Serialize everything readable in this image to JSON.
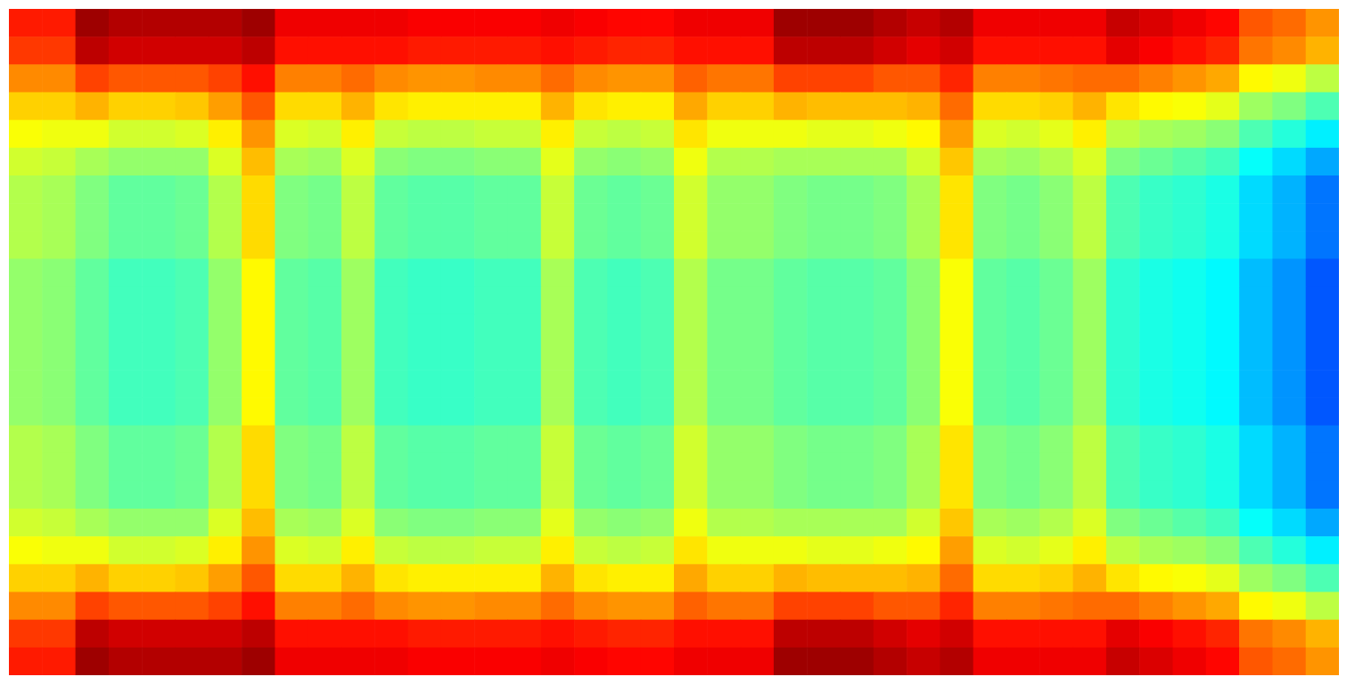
{
  "chart_data": {
    "type": "heatmap",
    "tick_labels": false,
    "zlim": [
      0,
      100
    ],
    "cells": [
      [
        85,
        85,
        97,
        95,
        95,
        95,
        95,
        97,
        89,
        89,
        89,
        89,
        88,
        88,
        88,
        88,
        89,
        88,
        87,
        87,
        89,
        89,
        89,
        97,
        97,
        97,
        95,
        93,
        95,
        89,
        89,
        89,
        89,
        93,
        91,
        89,
        87,
        79,
        77,
        73
      ],
      [
        82,
        82,
        94,
        92,
        92,
        92,
        92,
        94,
        86,
        86,
        86,
        86,
        85,
        85,
        85,
        85,
        86,
        85,
        84,
        84,
        86,
        86,
        86,
        94,
        94,
        94,
        92,
        90,
        92,
        86,
        86,
        86,
        86,
        90,
        88,
        86,
        84,
        76,
        74,
        70
      ],
      [
        74,
        74,
        81,
        79,
        79,
        79,
        81,
        86,
        75,
        75,
        77,
        74,
        73,
        73,
        74,
        74,
        77,
        74,
        73,
        73,
        78,
        76,
        76,
        81,
        81,
        81,
        79,
        79,
        84,
        75,
        75,
        76,
        77,
        77,
        75,
        73,
        71,
        63,
        61,
        56
      ],
      [
        67,
        67,
        70,
        67,
        67,
        68,
        72,
        79,
        66,
        66,
        70,
        65,
        64,
        64,
        64,
        64,
        70,
        65,
        64,
        64,
        71,
        67,
        67,
        70,
        69,
        69,
        69,
        70,
        77,
        66,
        66,
        67,
        70,
        65,
        63,
        62,
        60,
        53,
        50,
        45
      ],
      [
        62,
        61,
        61,
        58,
        58,
        59,
        64,
        73,
        59,
        58,
        64,
        57,
        56,
        56,
        57,
        57,
        64,
        57,
        56,
        57,
        65,
        61,
        61,
        61,
        60,
        60,
        61,
        63,
        72,
        59,
        58,
        60,
        64,
        56,
        54,
        53,
        51,
        45,
        41,
        36
      ],
      [
        58,
        57,
        54,
        52,
        52,
        52,
        59,
        69,
        54,
        53,
        59,
        51,
        50,
        50,
        51,
        51,
        60,
        52,
        51,
        52,
        61,
        55,
        55,
        54,
        54,
        54,
        54,
        58,
        68,
        54,
        53,
        55,
        59,
        50,
        48,
        46,
        44,
        38,
        34,
        29
      ],
      [
        55,
        54,
        50,
        47,
        47,
        48,
        55,
        66,
        50,
        49,
        56,
        47,
        46,
        46,
        47,
        47,
        57,
        48,
        47,
        48,
        58,
        52,
        52,
        50,
        49,
        49,
        50,
        54,
        65,
        50,
        49,
        51,
        56,
        45,
        43,
        42,
        40,
        34,
        30,
        24
      ],
      [
        55,
        54,
        50,
        47,
        47,
        48,
        55,
        66,
        50,
        49,
        56,
        47,
        46,
        46,
        47,
        47,
        57,
        48,
        47,
        48,
        58,
        52,
        52,
        50,
        49,
        49,
        50,
        54,
        65,
        50,
        49,
        51,
        56,
        45,
        43,
        42,
        40,
        34,
        30,
        24
      ],
      [
        55,
        54,
        50,
        47,
        47,
        48,
        55,
        66,
        50,
        49,
        56,
        47,
        46,
        46,
        47,
        47,
        57,
        48,
        47,
        48,
        58,
        52,
        52,
        50,
        49,
        49,
        50,
        54,
        65,
        50,
        49,
        51,
        56,
        45,
        43,
        42,
        40,
        34,
        30,
        24
      ],
      [
        52,
        51,
        47,
        44,
        44,
        45,
        52,
        63,
        47,
        46,
        53,
        44,
        43,
        43,
        44,
        44,
        54,
        45,
        44,
        45,
        55,
        49,
        49,
        47,
        46,
        46,
        47,
        51,
        62,
        47,
        46,
        48,
        53,
        42,
        40,
        39,
        37,
        31,
        27,
        21
      ],
      [
        52,
        51,
        47,
        44,
        44,
        45,
        52,
        63,
        47,
        46,
        53,
        44,
        43,
        43,
        44,
        44,
        54,
        45,
        44,
        45,
        55,
        49,
        49,
        47,
        46,
        46,
        47,
        51,
        62,
        47,
        46,
        48,
        53,
        42,
        40,
        39,
        37,
        31,
        27,
        21
      ],
      [
        52,
        51,
        47,
        44,
        44,
        45,
        52,
        63,
        47,
        46,
        53,
        44,
        43,
        43,
        44,
        44,
        54,
        45,
        44,
        45,
        55,
        49,
        49,
        47,
        46,
        46,
        47,
        51,
        62,
        47,
        46,
        48,
        53,
        42,
        40,
        39,
        37,
        31,
        27,
        21
      ],
      [
        52,
        51,
        47,
        44,
        44,
        45,
        52,
        63,
        47,
        46,
        53,
        44,
        43,
        43,
        44,
        44,
        54,
        45,
        44,
        45,
        55,
        49,
        49,
        47,
        46,
        46,
        47,
        51,
        62,
        47,
        46,
        48,
        53,
        42,
        40,
        39,
        37,
        31,
        27,
        21
      ],
      [
        52,
        51,
        47,
        44,
        44,
        45,
        52,
        63,
        47,
        46,
        53,
        44,
        43,
        43,
        44,
        44,
        54,
        45,
        44,
        45,
        55,
        49,
        49,
        47,
        46,
        46,
        47,
        51,
        62,
        47,
        46,
        48,
        53,
        42,
        40,
        39,
        37,
        31,
        27,
        21
      ],
      [
        52,
        51,
        47,
        44,
        44,
        45,
        52,
        63,
        47,
        46,
        53,
        44,
        43,
        43,
        44,
        44,
        54,
        45,
        44,
        45,
        55,
        49,
        49,
        47,
        46,
        46,
        47,
        51,
        62,
        47,
        46,
        48,
        53,
        42,
        40,
        39,
        37,
        31,
        27,
        21
      ],
      [
        55,
        54,
        50,
        47,
        47,
        48,
        55,
        66,
        50,
        49,
        56,
        47,
        46,
        46,
        47,
        47,
        57,
        48,
        47,
        48,
        58,
        52,
        52,
        50,
        49,
        49,
        50,
        54,
        65,
        50,
        49,
        51,
        56,
        45,
        43,
        42,
        40,
        34,
        30,
        24
      ],
      [
        55,
        54,
        50,
        47,
        47,
        48,
        55,
        66,
        50,
        49,
        56,
        47,
        46,
        46,
        47,
        47,
        57,
        48,
        47,
        48,
        58,
        52,
        52,
        50,
        49,
        49,
        50,
        54,
        65,
        50,
        49,
        51,
        56,
        45,
        43,
        42,
        40,
        34,
        30,
        24
      ],
      [
        55,
        54,
        50,
        47,
        47,
        48,
        55,
        66,
        50,
        49,
        56,
        47,
        46,
        46,
        47,
        47,
        57,
        48,
        47,
        48,
        58,
        52,
        52,
        50,
        49,
        49,
        50,
        54,
        65,
        50,
        49,
        51,
        56,
        45,
        43,
        42,
        40,
        34,
        30,
        24
      ],
      [
        58,
        57,
        54,
        52,
        52,
        52,
        59,
        69,
        54,
        53,
        59,
        51,
        50,
        50,
        51,
        51,
        60,
        52,
        51,
        52,
        61,
        55,
        55,
        54,
        54,
        54,
        54,
        58,
        68,
        54,
        53,
        55,
        59,
        50,
        48,
        46,
        44,
        38,
        34,
        29
      ],
      [
        62,
        61,
        61,
        58,
        58,
        59,
        64,
        73,
        59,
        58,
        64,
        57,
        56,
        56,
        57,
        57,
        64,
        57,
        56,
        57,
        65,
        61,
        61,
        61,
        60,
        60,
        61,
        63,
        72,
        59,
        58,
        60,
        64,
        56,
        54,
        53,
        51,
        45,
        41,
        36
      ],
      [
        67,
        67,
        70,
        67,
        67,
        68,
        72,
        79,
        66,
        66,
        70,
        65,
        64,
        64,
        64,
        64,
        70,
        65,
        64,
        64,
        71,
        67,
        67,
        70,
        69,
        69,
        69,
        70,
        77,
        66,
        66,
        67,
        70,
        65,
        63,
        62,
        60,
        53,
        50,
        45
      ],
      [
        74,
        74,
        81,
        79,
        79,
        79,
        81,
        86,
        75,
        75,
        77,
        74,
        73,
        73,
        74,
        74,
        77,
        74,
        73,
        73,
        78,
        76,
        76,
        81,
        81,
        81,
        79,
        79,
        84,
        75,
        75,
        76,
        77,
        77,
        75,
        73,
        71,
        63,
        61,
        56
      ],
      [
        82,
        82,
        94,
        92,
        92,
        92,
        92,
        94,
        86,
        86,
        86,
        86,
        85,
        85,
        85,
        85,
        86,
        85,
        84,
        84,
        86,
        86,
        86,
        94,
        94,
        94,
        92,
        90,
        92,
        86,
        86,
        86,
        86,
        90,
        88,
        86,
        84,
        76,
        74,
        70
      ],
      [
        85,
        85,
        97,
        95,
        95,
        95,
        95,
        97,
        89,
        89,
        89,
        89,
        88,
        88,
        88,
        88,
        89,
        88,
        87,
        87,
        89,
        89,
        89,
        97,
        97,
        97,
        95,
        93,
        95,
        89,
        89,
        89,
        89,
        93,
        91,
        89,
        87,
        79,
        77,
        73
      ]
    ]
  }
}
